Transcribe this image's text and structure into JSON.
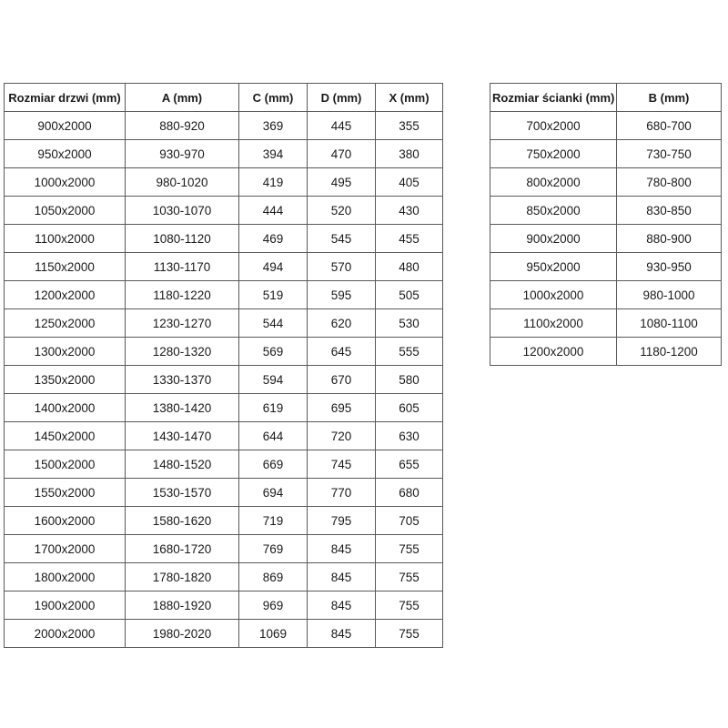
{
  "page": {
    "background_color": "#ffffff",
    "border_color": "#595959",
    "text_color": "#1a1a1a"
  },
  "door_table": {
    "headers": [
      "Rozmiar drzwi (mm)",
      "A (mm)",
      "C (mm)",
      "D (mm)",
      "X (mm)"
    ],
    "rows": [
      [
        "900x2000",
        "880-920",
        "369",
        "445",
        "355"
      ],
      [
        "950x2000",
        "930-970",
        "394",
        "470",
        "380"
      ],
      [
        "1000x2000",
        "980-1020",
        "419",
        "495",
        "405"
      ],
      [
        "1050x2000",
        "1030-1070",
        "444",
        "520",
        "430"
      ],
      [
        "1100x2000",
        "1080-1120",
        "469",
        "545",
        "455"
      ],
      [
        "1150x2000",
        "1130-1170",
        "494",
        "570",
        "480"
      ],
      [
        "1200x2000",
        "1180-1220",
        "519",
        "595",
        "505"
      ],
      [
        "1250x2000",
        "1230-1270",
        "544",
        "620",
        "530"
      ],
      [
        "1300x2000",
        "1280-1320",
        "569",
        "645",
        "555"
      ],
      [
        "1350x2000",
        "1330-1370",
        "594",
        "670",
        "580"
      ],
      [
        "1400x2000",
        "1380-1420",
        "619",
        "695",
        "605"
      ],
      [
        "1450x2000",
        "1430-1470",
        "644",
        "720",
        "630"
      ],
      [
        "1500x2000",
        "1480-1520",
        "669",
        "745",
        "655"
      ],
      [
        "1550x2000",
        "1530-1570",
        "694",
        "770",
        "680"
      ],
      [
        "1600x2000",
        "1580-1620",
        "719",
        "795",
        "705"
      ],
      [
        "1700x2000",
        "1680-1720",
        "769",
        "845",
        "755"
      ],
      [
        "1800x2000",
        "1780-1820",
        "869",
        "845",
        "755"
      ],
      [
        "1900x2000",
        "1880-1920",
        "969",
        "845",
        "755"
      ],
      [
        "2000x2000",
        "1980-2020",
        "1069",
        "845",
        "755"
      ]
    ]
  },
  "wall_table": {
    "headers": [
      "Rozmiar ścianki (mm)",
      "B (mm)"
    ],
    "rows": [
      [
        "700x2000",
        "680-700"
      ],
      [
        "750x2000",
        "730-750"
      ],
      [
        "800x2000",
        "780-800"
      ],
      [
        "850x2000",
        "830-850"
      ],
      [
        "900x2000",
        "880-900"
      ],
      [
        "950x2000",
        "930-950"
      ],
      [
        "1000x2000",
        "980-1000"
      ],
      [
        "1100x2000",
        "1080-1100"
      ],
      [
        "1200x2000",
        "1180-1200"
      ]
    ]
  }
}
